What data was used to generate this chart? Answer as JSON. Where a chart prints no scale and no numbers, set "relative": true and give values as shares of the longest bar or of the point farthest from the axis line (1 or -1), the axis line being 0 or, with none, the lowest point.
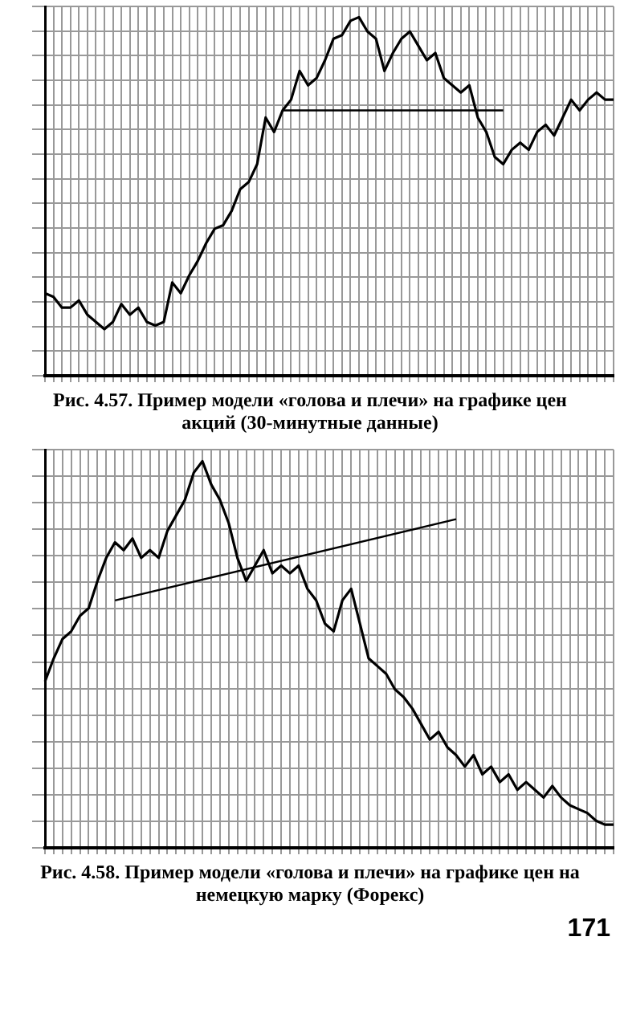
{
  "chart_data": [
    {
      "type": "line",
      "title": "Рис. 4.57. Пример модели «голова и плечи» на графике цен акций (30-минутные данные)",
      "relative": true,
      "grid": true,
      "legend": false,
      "marker": "none",
      "line_style": "solid",
      "tick_labels": false,
      "categories": [
        null,
        null,
        null,
        null,
        null,
        null,
        null,
        null,
        null,
        null,
        null,
        null,
        null,
        null,
        null,
        null,
        null,
        null,
        null,
        null,
        null,
        null,
        null,
        null,
        null,
        null,
        null,
        null,
        null,
        null,
        null,
        null,
        null,
        null,
        null,
        null,
        null,
        null,
        null,
        null,
        null,
        null,
        null,
        null,
        null,
        null,
        null,
        null,
        null,
        null,
        null,
        null,
        null,
        null,
        null,
        null,
        null,
        null,
        null,
        null,
        null,
        null,
        null,
        null,
        null,
        null,
        null,
        null
      ],
      "series": [
        {
          "color": "#000000",
          "values": [
            0.23,
            0.22,
            0.19,
            0.19,
            0.21,
            0.17,
            0.15,
            0.13,
            0.15,
            0.2,
            0.17,
            0.19,
            0.15,
            0.14,
            0.15,
            0.26,
            0.23,
            0.28,
            0.32,
            0.37,
            0.41,
            0.42,
            0.46,
            0.52,
            0.54,
            0.59,
            0.72,
            0.68,
            0.74,
            0.77,
            0.85,
            0.81,
            0.83,
            0.88,
            0.94,
            0.95,
            0.99,
            1,
            0.96,
            0.94,
            0.85,
            0.9,
            0.94,
            0.96,
            0.92,
            0.88,
            0.9,
            0.83,
            0.81,
            0.79,
            0.81,
            0.72,
            0.68,
            0.61,
            0.59,
            0.63,
            0.65,
            0.63,
            0.68,
            0.7,
            0.67,
            0.72,
            0.77,
            0.74,
            0.77,
            0.79,
            0.77,
            0.77
          ]
        },
        {
          "type": "line",
          "color": "#000000",
          "values": [
            null,
            null,
            null,
            null,
            null,
            null,
            null,
            null,
            null,
            null,
            null,
            null,
            null,
            null,
            null,
            null,
            null,
            null,
            null,
            null,
            null,
            null,
            null,
            null,
            null,
            null,
            null,
            null,
            0.74,
            null,
            null,
            null,
            null,
            null,
            null,
            null,
            null,
            null,
            null,
            null,
            null,
            null,
            null,
            null,
            null,
            null,
            null,
            null,
            null,
            null,
            null,
            null,
            null,
            null,
            0.74,
            null,
            null,
            null,
            null,
            null,
            null,
            null,
            null,
            null,
            null,
            null,
            null,
            null
          ]
        }
      ]
    },
    {
      "type": "line",
      "title": "Рис. 4.58. Пример модели «голова и плечи» на графике цен на немецкую марку (Форекс)",
      "annotations": [
        "171"
      ],
      "relative": true,
      "grid": true,
      "legend": false,
      "marker": "none",
      "line_style": "solid",
      "tick_labels": false,
      "categories": [
        null,
        null,
        null,
        null,
        null,
        null,
        null,
        null,
        null,
        null,
        null,
        null,
        null,
        null,
        null,
        null,
        null,
        null,
        null,
        null,
        null,
        null,
        null,
        null,
        null,
        null,
        null,
        null,
        null,
        null,
        null,
        null,
        null,
        null,
        null,
        null,
        null,
        null,
        null,
        null,
        null,
        null,
        null,
        null,
        null,
        null,
        null,
        null,
        null,
        null,
        null,
        null,
        null,
        null,
        null,
        null,
        null,
        null,
        null,
        null,
        null,
        null,
        null,
        null,
        null,
        null
      ],
      "series": [
        {
          "color": "#000000",
          "values": [
            0.43,
            0.49,
            0.54,
            0.56,
            0.6,
            0.62,
            0.69,
            0.75,
            0.79,
            0.77,
            0.8,
            0.75,
            0.77,
            0.75,
            0.82,
            0.86,
            0.9,
            0.97,
            1,
            0.94,
            0.9,
            0.84,
            0.75,
            0.69,
            0.73,
            0.77,
            0.71,
            0.73,
            0.71,
            0.73,
            0.67,
            0.64,
            0.58,
            0.56,
            0.64,
            0.67,
            0.58,
            0.49,
            0.47,
            0.45,
            0.41,
            0.39,
            0.36,
            0.32,
            0.28,
            0.3,
            0.26,
            0.24,
            0.21,
            0.24,
            0.19,
            0.21,
            0.17,
            0.19,
            0.15,
            0.17,
            0.15,
            0.13,
            0.16,
            0.13,
            0.11,
            0.1,
            0.09,
            0.07,
            0.06,
            0.06
          ]
        },
        {
          "type": "line",
          "color": "#000000",
          "values": [
            null,
            null,
            null,
            null,
            null,
            null,
            null,
            null,
            0.64,
            null,
            null,
            null,
            null,
            null,
            null,
            null,
            null,
            null,
            null,
            null,
            null,
            null,
            null,
            null,
            null,
            null,
            null,
            null,
            null,
            null,
            null,
            null,
            null,
            null,
            null,
            null,
            null,
            null,
            null,
            null,
            null,
            null,
            null,
            null,
            null,
            null,
            null,
            0.85,
            null,
            null,
            null,
            null,
            null,
            null,
            null,
            null,
            null,
            null,
            null,
            null,
            null,
            null,
            null,
            null,
            null,
            null
          ]
        }
      ]
    }
  ]
}
